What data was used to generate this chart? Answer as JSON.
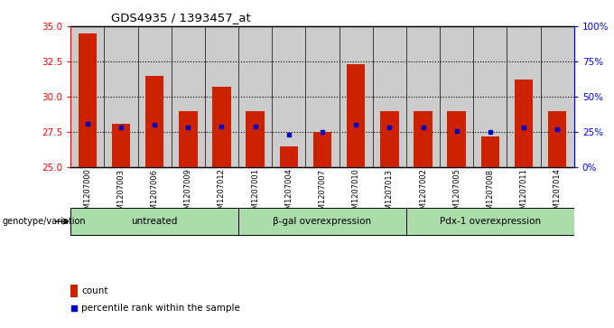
{
  "title": "GDS4935 / 1393457_at",
  "samples": [
    "GSM1207000",
    "GSM1207003",
    "GSM1207006",
    "GSM1207009",
    "GSM1207012",
    "GSM1207001",
    "GSM1207004",
    "GSM1207007",
    "GSM1207010",
    "GSM1207013",
    "GSM1207002",
    "GSM1207005",
    "GSM1207008",
    "GSM1207011",
    "GSM1207014"
  ],
  "counts": [
    34.5,
    28.1,
    31.5,
    29.0,
    30.7,
    29.0,
    26.5,
    27.5,
    32.3,
    29.0,
    29.0,
    29.0,
    27.2,
    31.2,
    29.0
  ],
  "percentile": [
    28.1,
    27.8,
    28.0,
    27.8,
    27.9,
    27.9,
    27.3,
    27.5,
    28.0,
    27.8,
    27.8,
    27.6,
    27.5,
    27.8,
    27.7
  ],
  "groups": [
    {
      "label": "untreated",
      "start": 0,
      "end": 5
    },
    {
      "label": "β-gal overexpression",
      "start": 5,
      "end": 10
    },
    {
      "label": "Pdx-1 overexpression",
      "start": 10,
      "end": 15
    }
  ],
  "bar_color": "#cc2200",
  "dot_color": "#0000cc",
  "ylim_left": [
    25,
    35
  ],
  "ylim_right": [
    0,
    100
  ],
  "yticks_left": [
    25,
    27.5,
    30,
    32.5,
    35
  ],
  "yticks_right": [
    0,
    25,
    50,
    75,
    100
  ],
  "ytick_labels_right": [
    "0%",
    "25%",
    "50%",
    "75%",
    "100%"
  ],
  "group_bg_color": "#aaddaa",
  "sample_bg_color": "#cccccc",
  "legend_label_count": "count",
  "legend_label_percentile": "percentile rank within the sample",
  "xlabel_area": "genotype/variation"
}
